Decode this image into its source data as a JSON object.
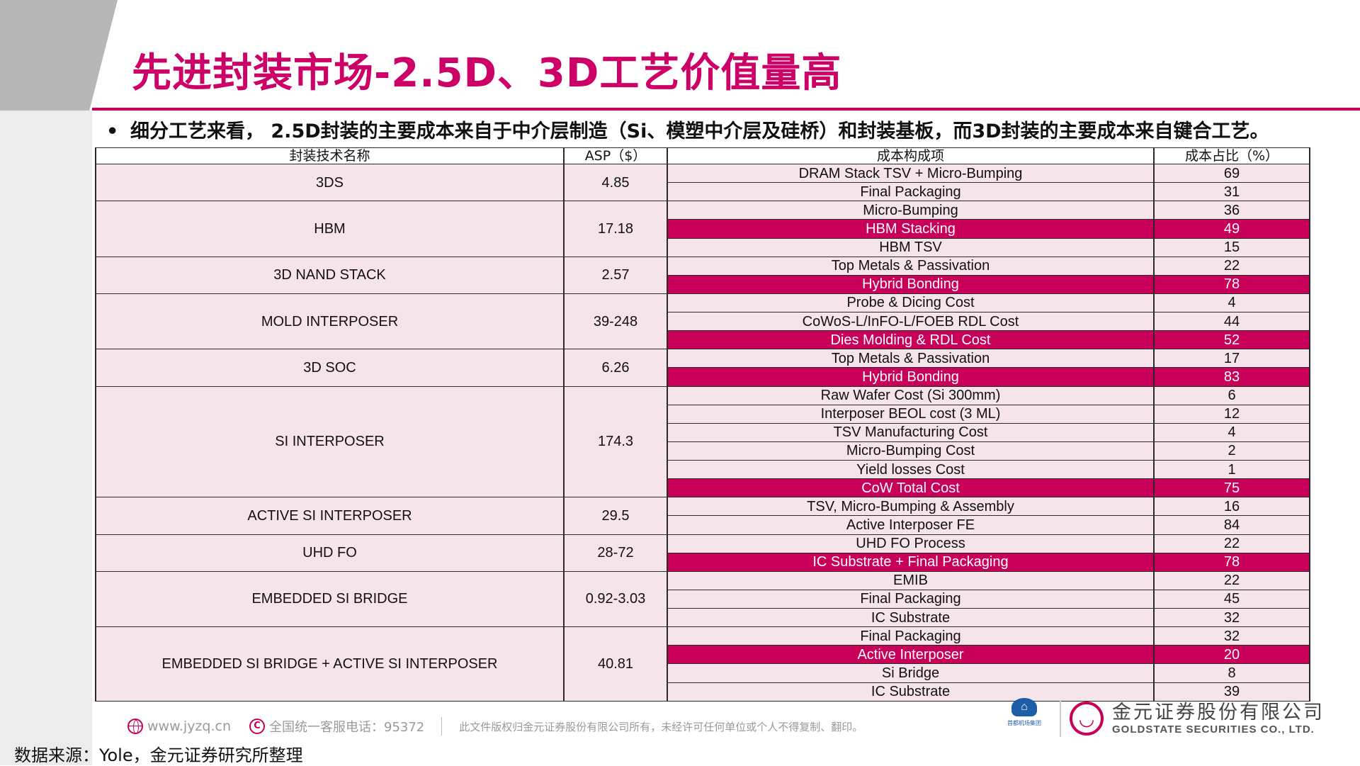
{
  "title": "先进封装市场-2.5D、3D工艺价值量高",
  "subtitle": {
    "bullet": "•",
    "text": "细分工艺来看， 2.5D封装的主要成本来自于中介层制造（Si、模塑中介层及硅桥）和封装基板，而3D封装的主要成本来自键合工艺。"
  },
  "table": {
    "headers": [
      "封装技术名称",
      "ASP（$）",
      "成本构成项",
      "成本占比（%）"
    ],
    "groups": [
      {
        "name": "3DS",
        "asp": "4.85",
        "items": [
          {
            "item": "DRAM Stack TSV + Micro-Bumping",
            "pct": "69"
          },
          {
            "item": "Final Packaging",
            "pct": "31"
          }
        ]
      },
      {
        "name": "HBM",
        "asp": "17.18",
        "items": [
          {
            "item": "Micro-Bumping",
            "pct": "36"
          },
          {
            "item": "HBM Stacking",
            "pct": "49",
            "highlight": true
          },
          {
            "item": "HBM TSV",
            "pct": "15"
          }
        ]
      },
      {
        "name": "3D NAND STACK",
        "asp": "2.57",
        "items": [
          {
            "item": "Top Metals & Passivation",
            "pct": "22"
          },
          {
            "item": "Hybrid Bonding",
            "pct": "78",
            "highlight": true
          }
        ]
      },
      {
        "name": "MOLD INTERPOSER",
        "asp": "39-248",
        "items": [
          {
            "item": "Probe & Dicing Cost",
            "pct": "4"
          },
          {
            "item": "CoWoS-L/InFO-L/FOEB RDL Cost",
            "pct": "44"
          },
          {
            "item": "Dies Molding & RDL Cost",
            "pct": "52",
            "highlight": true
          }
        ]
      },
      {
        "name": "3D SOC",
        "asp": "6.26",
        "items": [
          {
            "item": "Top Metals & Passivation",
            "pct": "17"
          },
          {
            "item": "Hybrid Bonding",
            "pct": "83",
            "highlight": true
          }
        ]
      },
      {
        "name": "SI INTERPOSER",
        "asp": "174.3",
        "items": [
          {
            "item": "Raw Wafer Cost (Si 300mm)",
            "pct": "6"
          },
          {
            "item": "Interposer BEOL cost (3 ML)",
            "pct": "12"
          },
          {
            "item": "TSV Manufacturing Cost",
            "pct": "4"
          },
          {
            "item": "Micro-Bumping Cost",
            "pct": "2"
          },
          {
            "item": "Yield losses Cost",
            "pct": "1"
          },
          {
            "item": "CoW Total Cost",
            "pct": "75",
            "highlight": true
          }
        ]
      },
      {
        "name": "ACTIVE SI INTERPOSER",
        "asp": "29.5",
        "items": [
          {
            "item": "TSV, Micro-Bumping & Assembly",
            "pct": "16"
          },
          {
            "item": "Active Interposer FE",
            "pct": "84"
          }
        ]
      },
      {
        "name": "UHD FO",
        "asp": "28-72",
        "items": [
          {
            "item": "UHD FO Process",
            "pct": "22"
          },
          {
            "item": "IC Substrate + Final Packaging",
            "pct": "78",
            "highlight": true
          }
        ]
      },
      {
        "name": "EMBEDDED SI BRIDGE",
        "asp": "0.92-3.03",
        "items": [
          {
            "item": "EMIB",
            "pct": "22"
          },
          {
            "item": "Final Packaging",
            "pct": "45"
          },
          {
            "item": "IC Substrate",
            "pct": "32"
          }
        ]
      },
      {
        "name": "EMBEDDED SI BRIDGE + ACTIVE SI INTERPOSER",
        "asp": "40.81",
        "items": [
          {
            "item": "Final Packaging",
            "pct": "32"
          },
          {
            "item": "Active Interposer",
            "pct": "20",
            "highlight": true
          },
          {
            "item": "Si Bridge",
            "pct": "8"
          },
          {
            "item": "IC Substrate",
            "pct": "39"
          }
        ]
      }
    ]
  },
  "footer": {
    "url": "www.jyzq.cn",
    "phone": "全国统一客服电话：95372",
    "copyright": "此文件版权归金元证券股份有限公司所有，未经许可任何单位或个人不得复制、翻印。",
    "airport_text": "首都机场集团",
    "company_cn": "金元证券股份有限公司",
    "company_en": "GOLDSTATE SECURITIES CO., LTD."
  },
  "source": "数据来源：Yole，金元证券研究所整理",
  "colors": {
    "accent": "#c8005a",
    "title": "#cc0066",
    "cell_bg": "#f5e4ea"
  }
}
